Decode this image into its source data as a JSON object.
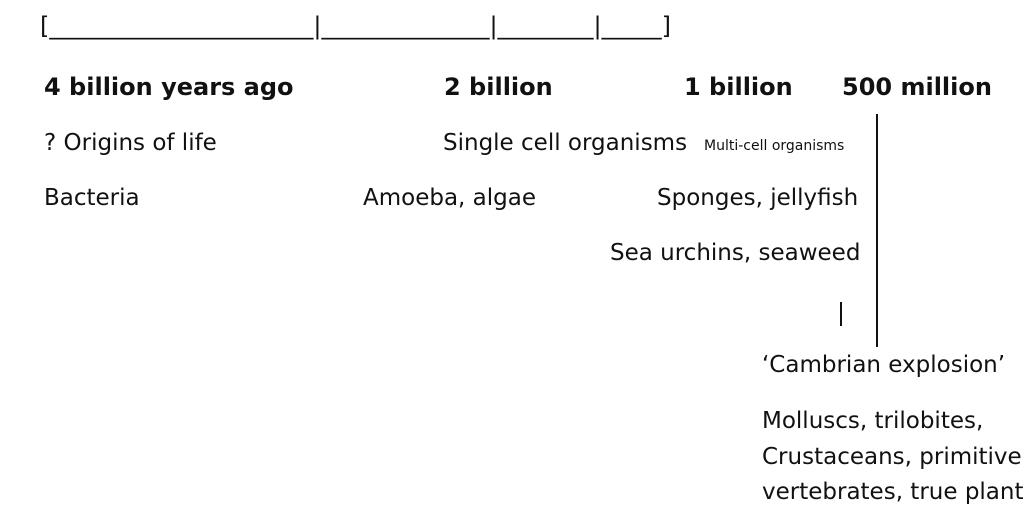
{
  "timeline": {
    "scale_bar": "[______________________|______________|________|_____]",
    "labels": {
      "four_billion": "4 billion years ago",
      "two_billion": "2 billion",
      "one_billion": "1 billion",
      "five_hundred_million": "500 million"
    }
  },
  "events": {
    "origins_of_life": "? Origins of life",
    "single_cell": "Single cell organisms",
    "multi_cell": "Multi-cell organisms",
    "bacteria": "Bacteria",
    "amoeba_algae": "Amoeba, algae",
    "sponges_jellyfish": "Sponges, jellyfish",
    "sea_urchins_seaweed": "Sea urchins, seaweed",
    "cambrian_explosion": "‘Cambrian explosion’",
    "cambrian_line1": "Molluscs, trilobites,",
    "cambrian_line2": "Crustaceans, primitive",
    "cambrian_line3": "vertebrates, true plants"
  }
}
